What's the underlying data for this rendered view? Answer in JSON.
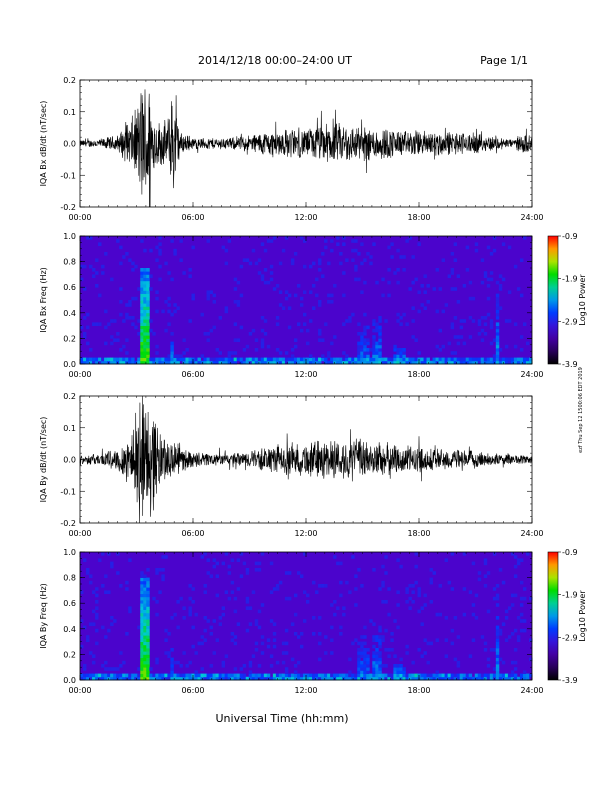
{
  "header": {
    "title": "2014/12/18   00:00–24:00  UT",
    "page": "Page 1/1"
  },
  "xlabel": "Universal Time (hh:mm)",
  "stamp": "ezf Thu Sep 12 1500:06 EDT 2019",
  "chart_data": [
    {
      "type": "line",
      "ylabel": "IQA Bx dB/dt (nT/sec)",
      "x_ticks": [
        "00:00",
        "06:00",
        "12:00",
        "18:00",
        "24:00"
      ],
      "y_ticks": [
        "0.2",
        "0.1",
        "0.0",
        "-0.1",
        "-0.2"
      ],
      "xlim": [
        0,
        24
      ],
      "ylim": [
        -0.2,
        0.2
      ],
      "envelope": [
        {
          "t": 0,
          "amp": 0.012
        },
        {
          "t": 1,
          "amp": 0.015
        },
        {
          "t": 2,
          "amp": 0.03
        },
        {
          "t": 2.5,
          "amp": 0.07
        },
        {
          "t": 3.0,
          "amp": 0.12
        },
        {
          "t": 3.3,
          "amp": 0.22
        },
        {
          "t": 3.7,
          "amp": 0.22
        },
        {
          "t": 4.0,
          "amp": 0.08
        },
        {
          "t": 4.6,
          "amp": 0.08
        },
        {
          "t": 5.0,
          "amp": 0.18
        },
        {
          "t": 5.3,
          "amp": 0.04
        },
        {
          "t": 6,
          "amp": 0.02
        },
        {
          "t": 8,
          "amp": 0.02
        },
        {
          "t": 9,
          "amp": 0.03
        },
        {
          "t": 10,
          "amp": 0.045
        },
        {
          "t": 11,
          "amp": 0.05
        },
        {
          "t": 12,
          "amp": 0.05
        },
        {
          "t": 13,
          "amp": 0.07
        },
        {
          "t": 14,
          "amp": 0.07
        },
        {
          "t": 15,
          "amp": 0.06
        },
        {
          "t": 16,
          "amp": 0.06
        },
        {
          "t": 17,
          "amp": 0.045
        },
        {
          "t": 19,
          "amp": 0.045
        },
        {
          "t": 21,
          "amp": 0.035
        },
        {
          "t": 22,
          "amp": 0.025
        },
        {
          "t": 23,
          "amp": 0.015
        },
        {
          "t": 23.7,
          "amp": 0.04
        },
        {
          "t": 24,
          "amp": 0.015
        }
      ]
    },
    {
      "type": "heatmap",
      "ylabel": "IQA Bx Freq (Hz)",
      "x_ticks": [
        "00:00",
        "06:00",
        "12:00",
        "18:00",
        "24:00"
      ],
      "y_ticks": [
        "1.0",
        "0.8",
        "0.6",
        "0.4",
        "0.2",
        "0.0"
      ],
      "xlim": [
        0,
        24
      ],
      "ylim": [
        0.0,
        1.0
      ],
      "colorbar": {
        "label": "Log10 Power",
        "ticks": [
          "-0.9",
          "-1.9",
          "-2.9",
          "-3.9"
        ],
        "range": [
          -3.9,
          -0.9
        ]
      },
      "features": [
        {
          "t": 3.5,
          "width": 0.5,
          "fmax": 0.75,
          "level": -1.7
        },
        {
          "t": 4.9,
          "width": 0.2,
          "fmax": 0.4,
          "level": -2.5
        },
        {
          "t": 15.0,
          "width": 0.6,
          "fmax": 0.65,
          "level": -2.6
        },
        {
          "t": 15.8,
          "width": 0.4,
          "fmax": 0.65,
          "level": -2.5
        },
        {
          "t": 17.0,
          "width": 0.6,
          "fmax": 0.17,
          "level": -2.3
        },
        {
          "t": 22.2,
          "width": 0.1,
          "fmax": 0.85,
          "level": -2.4
        }
      ]
    },
    {
      "type": "line",
      "ylabel": "IQA By dB/dt (nT/sec)",
      "x_ticks": [
        "00:00",
        "06:00",
        "12:00",
        "18:00",
        "24:00"
      ],
      "y_ticks": [
        "0.2",
        "0.1",
        "0.0",
        "-0.1",
        "-0.2"
      ],
      "xlim": [
        0,
        24
      ],
      "ylim": [
        -0.2,
        0.2
      ],
      "envelope": [
        {
          "t": 0,
          "amp": 0.015
        },
        {
          "t": 1,
          "amp": 0.02
        },
        {
          "t": 2,
          "amp": 0.04
        },
        {
          "t": 2.5,
          "amp": 0.08
        },
        {
          "t": 3.0,
          "amp": 0.16
        },
        {
          "t": 3.3,
          "amp": 0.22
        },
        {
          "t": 3.8,
          "amp": 0.2
        },
        {
          "t": 4.2,
          "amp": 0.1
        },
        {
          "t": 5.0,
          "amp": 0.06
        },
        {
          "t": 6,
          "amp": 0.025
        },
        {
          "t": 8,
          "amp": 0.02
        },
        {
          "t": 9,
          "amp": 0.03
        },
        {
          "t": 10,
          "amp": 0.045
        },
        {
          "t": 11,
          "amp": 0.05
        },
        {
          "t": 12,
          "amp": 0.06
        },
        {
          "t": 13,
          "amp": 0.07
        },
        {
          "t": 14,
          "amp": 0.065
        },
        {
          "t": 15,
          "amp": 0.065
        },
        {
          "t": 16,
          "amp": 0.06
        },
        {
          "t": 17,
          "amp": 0.05
        },
        {
          "t": 19,
          "amp": 0.04
        },
        {
          "t": 21,
          "amp": 0.03
        },
        {
          "t": 22,
          "amp": 0.02
        },
        {
          "t": 24,
          "amp": 0.015
        }
      ]
    },
    {
      "type": "heatmap",
      "ylabel": "IQA By Freq (Hz)",
      "x_ticks": [
        "00:00",
        "06:00",
        "12:00",
        "18:00",
        "24:00"
      ],
      "y_ticks": [
        "1.0",
        "0.8",
        "0.6",
        "0.4",
        "0.2",
        "0.0"
      ],
      "xlim": [
        0,
        24
      ],
      "ylim": [
        0.0,
        1.0
      ],
      "colorbar": {
        "label": "Log10 Power",
        "ticks": [
          "-0.9",
          "-1.9",
          "-2.9",
          "-3.9"
        ],
        "range": [
          -3.9,
          -0.9
        ]
      },
      "features": [
        {
          "t": 3.5,
          "width": 0.5,
          "fmax": 0.8,
          "level": -1.7
        },
        {
          "t": 4.9,
          "width": 0.2,
          "fmax": 0.4,
          "level": -2.5
        },
        {
          "t": 15.0,
          "width": 0.6,
          "fmax": 0.65,
          "level": -2.6
        },
        {
          "t": 15.8,
          "width": 0.4,
          "fmax": 0.65,
          "level": -2.5
        },
        {
          "t": 17.0,
          "width": 0.6,
          "fmax": 0.17,
          "level": -2.3
        },
        {
          "t": 22.2,
          "width": 0.1,
          "fmax": 0.85,
          "level": -2.4
        }
      ]
    }
  ]
}
